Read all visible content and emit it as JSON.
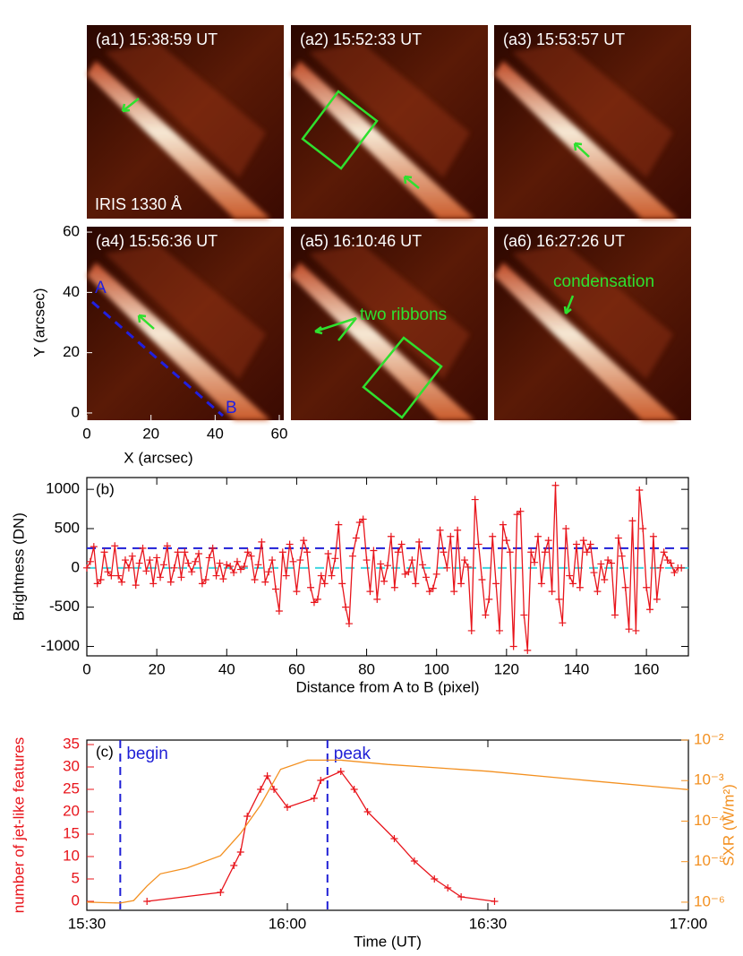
{
  "panels": [
    {
      "label": "(a1) 15:38:59 UT"
    },
    {
      "label": "(a2) 15:52:33 UT"
    },
    {
      "label": "(a3) 15:53:57 UT"
    },
    {
      "label": "(a4) 15:56:36 UT"
    },
    {
      "label": "(a5) 16:10:46 UT"
    },
    {
      "label": "(a6) 16:27:26 UT"
    }
  ],
  "panel_notes": {
    "instrument": "IRIS 1330 Å",
    "point_a": "A",
    "point_b": "B",
    "ribbons": "two ribbons",
    "condensation": "condensation"
  },
  "map_axes": {
    "xlabel": "X (arcsec)",
    "ylabel": "Y (arcsec)",
    "xlim": [
      0,
      61.4
    ],
    "ylim": [
      -2.4,
      61.8
    ],
    "xticks": [
      0,
      20,
      40,
      60
    ],
    "yticks": [
      0,
      20,
      40,
      60
    ]
  },
  "chart_data": [
    {
      "type": "line",
      "title": "(b)",
      "xlabel": "Distance from A to B (pixel)",
      "ylabel": "Brightness (DN)",
      "xlim": [
        0,
        172
      ],
      "ylim": [
        -1120,
        1150
      ],
      "xticks": [
        0,
        20,
        40,
        60,
        80,
        100,
        120,
        140,
        160
      ],
      "yticks": [
        -1000,
        -500,
        0,
        500,
        1000
      ],
      "x": [
        0,
        1,
        2,
        3,
        4,
        5,
        6,
        7,
        8,
        9,
        10,
        11,
        12,
        13,
        14,
        15,
        16,
        17,
        18,
        19,
        20,
        21,
        22,
        23,
        24,
        25,
        26,
        27,
        28,
        29,
        30,
        31,
        32,
        33,
        34,
        35,
        36,
        37,
        38,
        39,
        40,
        41,
        42,
        43,
        44,
        45,
        46,
        47,
        48,
        49,
        50,
        51,
        52,
        53,
        54,
        55,
        56,
        57,
        58,
        59,
        60,
        61,
        62,
        63,
        64,
        65,
        66,
        67,
        68,
        69,
        70,
        71,
        72,
        73,
        74,
        75,
        76,
        77,
        78,
        79,
        80,
        81,
        82,
        83,
        84,
        85,
        86,
        87,
        88,
        89,
        90,
        91,
        92,
        93,
        94,
        95,
        96,
        97,
        98,
        99,
        100,
        101,
        102,
        103,
        104,
        105,
        106,
        107,
        108,
        109,
        110,
        111,
        112,
        113,
        114,
        115,
        116,
        117,
        118,
        119,
        120,
        121,
        122,
        123,
        124,
        125,
        126,
        127,
        128,
        129,
        130,
        131,
        132,
        133,
        134,
        135,
        136,
        137,
        138,
        139,
        140,
        141,
        142,
        143,
        144,
        145,
        146,
        147,
        148,
        149,
        150,
        151,
        152,
        153,
        154,
        155,
        156,
        157,
        158,
        159,
        160,
        161,
        162,
        163,
        164,
        165,
        166,
        167,
        168,
        169,
        170
      ],
      "series": [
        {
          "color": "#e8141b",
          "marker": "+",
          "values": [
            0,
            80,
            270,
            -200,
            -150,
            200,
            -50,
            -100,
            280,
            -100,
            -180,
            100,
            0,
            150,
            -220,
            60,
            250,
            -40,
            100,
            -200,
            130,
            -120,
            40,
            280,
            -180,
            0,
            200,
            -120,
            200,
            60,
            -50,
            80,
            180,
            -200,
            -150,
            130,
            250,
            -100,
            60,
            -140,
            40,
            20,
            -60,
            80,
            -20,
            20,
            200,
            150,
            -150,
            40,
            330,
            -180,
            -50,
            100,
            -270,
            -550,
            200,
            -100,
            300,
            80,
            -300,
            100,
            350,
            200,
            -250,
            -440,
            -400,
            -100,
            -200,
            180,
            -100,
            120,
            550,
            -200,
            -500,
            -710,
            150,
            380,
            580,
            620,
            100,
            -300,
            220,
            -400,
            50,
            -170,
            30,
            400,
            -250,
            200,
            300,
            -80,
            -50,
            100,
            -200,
            330,
            40,
            -120,
            -300,
            -260,
            -80,
            480,
            200,
            0,
            400,
            -300,
            480,
            -200,
            100,
            10,
            -800,
            870,
            300,
            -150,
            -600,
            -400,
            400,
            -200,
            -800,
            550,
            350,
            200,
            -1000,
            680,
            720,
            -600,
            -1050,
            200,
            70,
            400,
            -200,
            200,
            350,
            -300,
            1050,
            -400,
            -700,
            500,
            -100,
            -200,
            300,
            -250,
            350,
            200,
            300,
            -60,
            -300,
            50,
            -150,
            100,
            60,
            -600,
            380,
            150,
            -250,
            -780,
            600,
            -800,
            990,
            500,
            -250,
            -530,
            400,
            -400,
            0,
            200,
            100,
            60,
            -60,
            0,
            0
          ]
        }
      ],
      "reference_lines": [
        {
          "value": 250,
          "color": "#1f1fd6"
        },
        {
          "value": 0,
          "color": "#3fd6e0"
        }
      ]
    },
    {
      "type": "line",
      "title": "(c)",
      "xlabel": "Time (UT)",
      "ylabel": "number of jet-like features",
      "y2label": "SXR (W/m²)",
      "ylabel_color": "#e8141b",
      "y2_color": "#f39020",
      "xlim": [
        "15:30",
        "17:00"
      ],
      "xticks": [
        "15:30",
        "16:00",
        "16:30",
        "17:00"
      ],
      "ylim": [
        -2,
        36
      ],
      "yticks": [
        0,
        5,
        10,
        15,
        20,
        25,
        30,
        35
      ],
      "y2scale": "log",
      "y2lim": [
        6.3e-07,
        0.01
      ],
      "y2ticks": [
        {
          "value": 1e-06,
          "label": "10⁻⁶"
        },
        {
          "value": 1e-05,
          "label": "10⁻⁵"
        },
        {
          "value": 0.0001,
          "label": "10⁻⁴"
        },
        {
          "value": 0.001,
          "label": "10⁻³"
        },
        {
          "value": 0.01,
          "label": "10⁻²"
        }
      ],
      "series": [
        {
          "color": "#e8141b",
          "marker": "+",
          "x": [
            "15:39",
            "15:50",
            "15:52",
            "15:53",
            "15:54",
            "15:56",
            "15:57",
            "15:58",
            "16:00",
            "16:04",
            "16:05",
            "16:08",
            "16:10",
            "16:12",
            "16:16",
            "16:19",
            "16:22",
            "16:24",
            "16:26",
            "16:31"
          ],
          "values": [
            0,
            2,
            8,
            11,
            19,
            25,
            28,
            25,
            21,
            23,
            27,
            29,
            25,
            20,
            14,
            9,
            5,
            3,
            1,
            0
          ]
        },
        {
          "color": "#f39020",
          "axis": "y2",
          "x": [
            "15:30",
            "15:35",
            "15:37",
            "15:39",
            "15:41",
            "15:45",
            "15:50",
            "15:53",
            "15:56",
            "15:59",
            "16:03",
            "16:08",
            "16:15",
            "16:30",
            "16:45",
            "17:00"
          ],
          "values": [
            1e-06,
            9.5e-07,
            1.1e-06,
            2.5e-06,
            5e-06,
            7e-06,
            1.4e-05,
            5e-05,
            0.00025,
            0.0019,
            0.0032,
            0.0032,
            0.0025,
            0.0017,
            0.001,
            0.0006
          ]
        }
      ],
      "vlines": [
        {
          "x": "15:35",
          "label": "begin",
          "color": "#1f1fd6"
        },
        {
          "x": "16:06",
          "label": "peak",
          "color": "#1f1fd6"
        }
      ]
    }
  ]
}
